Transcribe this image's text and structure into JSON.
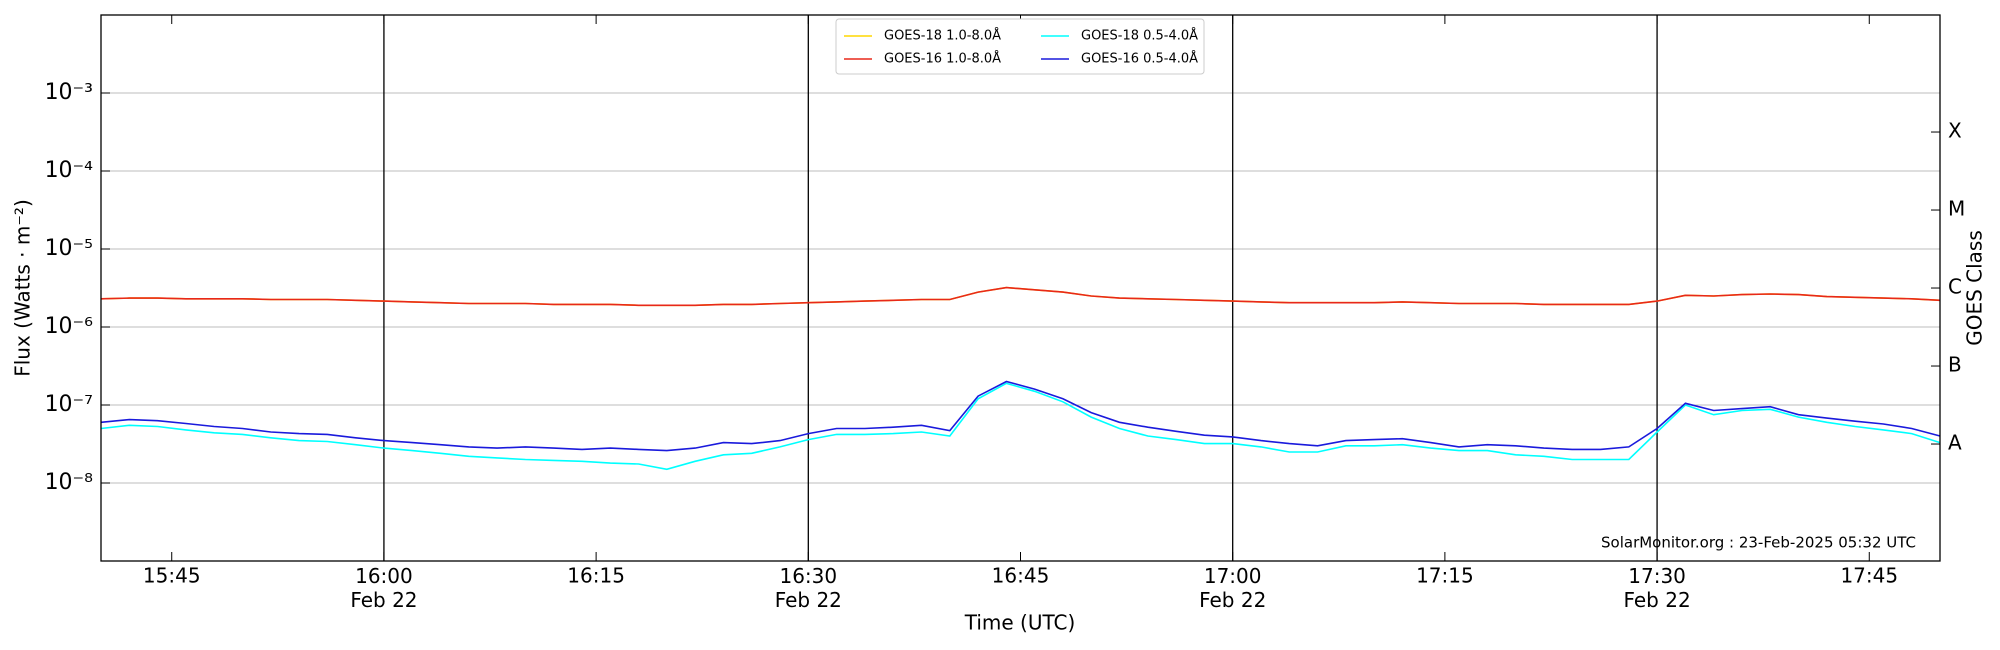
{
  "chart_data": {
    "type": "line",
    "x_label": "Time (UTC)",
    "y_label": "Flux (Watts · m⁻²)",
    "y2_label": "GOES Class",
    "annotation": "SolarMonitor.org : 23-Feb-2025 05:32 UTC",
    "ylog": true,
    "grid": true,
    "legend_position": "top",
    "xlim": [
      "15:40",
      "17:50"
    ],
    "xticks": [
      "15:45",
      {
        "value": "16:00",
        "label": "16:00\nFeb 22"
      },
      "16:15",
      {
        "value": "16:30",
        "label": "16:30\nFeb 22"
      },
      "16:45",
      {
        "value": "17:00",
        "label": "17:00\nFeb 22"
      },
      "17:15",
      {
        "value": "17:30",
        "label": "17:30\nFeb 22"
      },
      "17:45"
    ],
    "ylim": [
      1e-09,
      0.01
    ],
    "yticks": [
      {
        "value": 1e-08,
        "label": "10⁻⁸"
      },
      {
        "value": 1e-07,
        "label": "10⁻⁷"
      },
      {
        "value": 1e-06,
        "label": "10⁻⁶"
      },
      {
        "value": 1e-05,
        "label": "10⁻⁵"
      },
      {
        "value": 0.0001,
        "label": "10⁻⁴"
      },
      {
        "value": 0.001,
        "label": "10⁻³"
      }
    ],
    "y2lim": [
      1e-09,
      0.01
    ],
    "y2ticks": [
      {
        "value": 3.16e-08,
        "label": "A"
      },
      {
        "value": 3.16e-07,
        "label": "B"
      },
      {
        "value": 3.16e-06,
        "label": "C"
      },
      {
        "value": 3.16e-05,
        "label": "M"
      },
      {
        "value": 0.000316,
        "label": "X"
      }
    ],
    "x": [
      "15:40",
      "15:42",
      "15:44",
      "15:46",
      "15:48",
      "15:50",
      "15:52",
      "15:54",
      "15:56",
      "15:58",
      "16:00",
      "16:02",
      "16:04",
      "16:06",
      "16:08",
      "16:10",
      "16:12",
      "16:14",
      "16:16",
      "16:18",
      "16:20",
      "16:22",
      "16:24",
      "16:26",
      "16:28",
      "16:30",
      "16:32",
      "16:34",
      "16:36",
      "16:38",
      "16:40",
      "16:42",
      "16:44",
      "16:46",
      "16:48",
      "16:50",
      "16:52",
      "16:54",
      "16:56",
      "16:58",
      "17:00",
      "17:02",
      "17:04",
      "17:06",
      "17:08",
      "17:10",
      "17:12",
      "17:14",
      "17:16",
      "17:18",
      "17:20",
      "17:22",
      "17:24",
      "17:26",
      "17:28",
      "17:30",
      "17:32",
      "17:34",
      "17:36",
      "17:38",
      "17:40",
      "17:42",
      "17:44",
      "17:46",
      "17:48",
      "17:50"
    ],
    "series": [
      {
        "name": "GOES-18 1.0-8.0Å",
        "color": "#ffd700",
        "values": [
          2.3e-06,
          2.35e-06,
          2.35e-06,
          2.3e-06,
          2.3e-06,
          2.3e-06,
          2.25e-06,
          2.25e-06,
          2.25e-06,
          2.2e-06,
          2.15e-06,
          2.1e-06,
          2.05e-06,
          2e-06,
          2e-06,
          2e-06,
          1.95e-06,
          1.95e-06,
          1.95e-06,
          1.9e-06,
          1.9e-06,
          1.9e-06,
          1.95e-06,
          1.95e-06,
          2e-06,
          2.05e-06,
          2.1e-06,
          2.15e-06,
          2.2e-06,
          2.25e-06,
          2.25e-06,
          2.8e-06,
          3.2e-06,
          3e-06,
          2.8e-06,
          2.5e-06,
          2.35e-06,
          2.3e-06,
          2.25e-06,
          2.2e-06,
          2.15e-06,
          2.1e-06,
          2.05e-06,
          2.05e-06,
          2.05e-06,
          2.05e-06,
          2.1e-06,
          2.05e-06,
          2e-06,
          2e-06,
          2e-06,
          1.95e-06,
          1.95e-06,
          1.95e-06,
          1.95e-06,
          2.15e-06,
          2.55e-06,
          2.5e-06,
          2.6e-06,
          2.65e-06,
          2.6e-06,
          2.45e-06,
          2.4e-06,
          2.35e-06,
          2.3e-06,
          2.2e-06
        ]
      },
      {
        "name": "GOES-16 1.0-8.0Å",
        "color": "#e8281a",
        "values": [
          2.3e-06,
          2.35e-06,
          2.35e-06,
          2.3e-06,
          2.3e-06,
          2.3e-06,
          2.25e-06,
          2.25e-06,
          2.25e-06,
          2.2e-06,
          2.15e-06,
          2.1e-06,
          2.05e-06,
          2e-06,
          2e-06,
          2e-06,
          1.95e-06,
          1.95e-06,
          1.95e-06,
          1.9e-06,
          1.9e-06,
          1.9e-06,
          1.95e-06,
          1.95e-06,
          2e-06,
          2.05e-06,
          2.1e-06,
          2.15e-06,
          2.2e-06,
          2.25e-06,
          2.25e-06,
          2.8e-06,
          3.2e-06,
          3e-06,
          2.8e-06,
          2.5e-06,
          2.35e-06,
          2.3e-06,
          2.25e-06,
          2.2e-06,
          2.15e-06,
          2.1e-06,
          2.05e-06,
          2.05e-06,
          2.05e-06,
          2.05e-06,
          2.1e-06,
          2.05e-06,
          2e-06,
          2e-06,
          2e-06,
          1.95e-06,
          1.95e-06,
          1.95e-06,
          1.95e-06,
          2.15e-06,
          2.55e-06,
          2.5e-06,
          2.6e-06,
          2.65e-06,
          2.6e-06,
          2.45e-06,
          2.4e-06,
          2.35e-06,
          2.3e-06,
          2.2e-06
        ]
      },
      {
        "name": "GOES-18 0.5-4.0Å",
        "color": "#00ffff",
        "values": [
          5e-08,
          5.5e-08,
          5.3e-08,
          4.8e-08,
          4.4e-08,
          4.2e-08,
          3.8e-08,
          3.5e-08,
          3.4e-08,
          3.1e-08,
          2.8e-08,
          2.6e-08,
          2.4e-08,
          2.2e-08,
          2.1e-08,
          2e-08,
          1.95e-08,
          1.9e-08,
          1.8e-08,
          1.75e-08,
          1.5e-08,
          1.9e-08,
          2.3e-08,
          2.4e-08,
          2.9e-08,
          3.6e-08,
          4.2e-08,
          4.2e-08,
          4.3e-08,
          4.5e-08,
          4e-08,
          1.2e-07,
          1.9e-07,
          1.5e-07,
          1.1e-07,
          7e-08,
          5e-08,
          4e-08,
          3.6e-08,
          3.2e-08,
          3.2e-08,
          2.9e-08,
          2.5e-08,
          2.5e-08,
          3e-08,
          3e-08,
          3.1e-08,
          2.8e-08,
          2.6e-08,
          2.6e-08,
          2.3e-08,
          2.2e-08,
          2e-08,
          2e-08,
          2e-08,
          4.5e-08,
          1e-07,
          7.5e-08,
          8.5e-08,
          8.8e-08,
          7e-08,
          6e-08,
          5.3e-08,
          4.8e-08,
          4.3e-08,
          3.3e-08
        ]
      },
      {
        "name": "GOES-16 0.5-4.0Å",
        "color": "#1a1adc",
        "values": [
          6e-08,
          6.5e-08,
          6.3e-08,
          5.8e-08,
          5.3e-08,
          5e-08,
          4.5e-08,
          4.3e-08,
          4.2e-08,
          3.8e-08,
          3.5e-08,
          3.3e-08,
          3.1e-08,
          2.9e-08,
          2.8e-08,
          2.9e-08,
          2.8e-08,
          2.7e-08,
          2.8e-08,
          2.7e-08,
          2.6e-08,
          2.8e-08,
          3.3e-08,
          3.2e-08,
          3.5e-08,
          4.3e-08,
          5e-08,
          5e-08,
          5.2e-08,
          5.5e-08,
          4.7e-08,
          1.3e-07,
          2e-07,
          1.6e-07,
          1.2e-07,
          8e-08,
          6e-08,
          5.2e-08,
          4.6e-08,
          4.1e-08,
          3.9e-08,
          3.5e-08,
          3.2e-08,
          3e-08,
          3.5e-08,
          3.6e-08,
          3.7e-08,
          3.3e-08,
          2.9e-08,
          3.1e-08,
          3e-08,
          2.8e-08,
          2.7e-08,
          2.7e-08,
          2.9e-08,
          5e-08,
          1.05e-07,
          8.5e-08,
          9e-08,
          9.5e-08,
          7.5e-08,
          6.8e-08,
          6.2e-08,
          5.7e-08,
          5e-08,
          4e-08
        ]
      }
    ]
  }
}
